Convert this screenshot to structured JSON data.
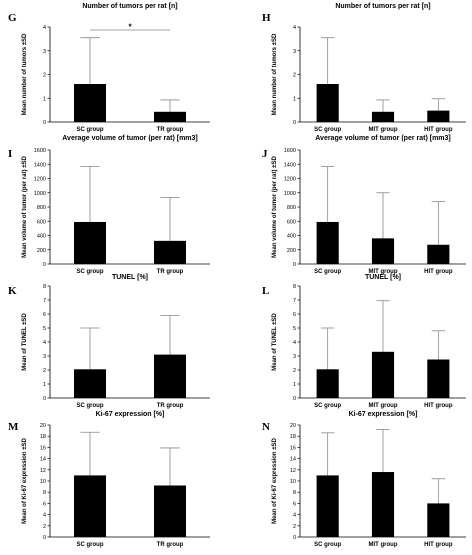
{
  "chart_data": [
    {
      "panel": "G",
      "type": "bar",
      "title": "Number of tumors per rat [n]",
      "ylabel": "Mean number of tumors ±SD",
      "categories": [
        "SC group",
        "TR group"
      ],
      "values": [
        1.6,
        0.43
      ],
      "errors": [
        1.95,
        0.5
      ],
      "ylim": [
        0,
        4
      ],
      "yticks": [
        "0",
        "1",
        "2",
        "3",
        "4"
      ],
      "significance": {
        "label": "*",
        "between": [
          0,
          1
        ]
      }
    },
    {
      "panel": "H",
      "type": "bar",
      "title": "Number of tumors per rat [n]",
      "ylabel": "Mean number of tumors ±SD",
      "categories": [
        "SC group",
        "MIT group",
        "HIT group"
      ],
      "values": [
        1.6,
        0.43,
        0.48
      ],
      "errors": [
        1.95,
        0.5,
        0.5
      ],
      "ylim": [
        0,
        4
      ],
      "yticks": [
        "0",
        "1",
        "2",
        "3",
        "4"
      ]
    },
    {
      "panel": "I",
      "type": "bar",
      "title": "Average volume of tumor (per rat) [mm3]",
      "ylabel": "Mean volume of tumor (per rat) ±SD",
      "categories": [
        "SC group",
        "TR group"
      ],
      "values": [
        590,
        325
      ],
      "errors": [
        780,
        610
      ],
      "ylim": [
        0,
        1600
      ],
      "yticks": [
        "0",
        "200",
        "400",
        "600",
        "800",
        "1000",
        "1200",
        "1400",
        "1600"
      ]
    },
    {
      "panel": "J",
      "type": "bar",
      "title": "Average volume of tumor (per rat) [mm3]",
      "ylabel": "Mean volume of tumor (per rat) ±SD",
      "categories": [
        "SC group",
        "MIT group",
        "HIT group"
      ],
      "values": [
        590,
        360,
        270
      ],
      "errors": [
        780,
        640,
        605
      ],
      "ylim": [
        0,
        1600
      ],
      "yticks": [
        "0",
        "200",
        "400",
        "600",
        "800",
        "1000",
        "1200",
        "1400",
        "1600"
      ]
    },
    {
      "panel": "K",
      "type": "bar",
      "title": "TUNEL [%]",
      "ylabel": "Mean of TUNEL ±SD",
      "categories": [
        "SC group",
        "TR group"
      ],
      "values": [
        2.05,
        3.1
      ],
      "errors": [
        2.95,
        2.8
      ],
      "ylim": [
        0,
        8
      ],
      "yticks": [
        "0",
        "1",
        "2",
        "3",
        "4",
        "5",
        "6",
        "7",
        "8"
      ]
    },
    {
      "panel": "L",
      "type": "bar",
      "title": "TUNEL [%]",
      "ylabel": "Mean of TUNEL ±SD",
      "categories": [
        "SC group",
        "MIT group",
        "HIT group"
      ],
      "values": [
        2.05,
        3.3,
        2.75
      ],
      "errors": [
        2.95,
        3.65,
        2.05
      ],
      "ylim": [
        0,
        8
      ],
      "yticks": [
        "0",
        "1",
        "2",
        "3",
        "4",
        "5",
        "6",
        "7",
        "8"
      ]
    },
    {
      "panel": "M",
      "type": "bar",
      "title": "Ki-67 expression [%]",
      "ylabel": "Mean of Ki-67 expression ±SD",
      "categories": [
        "SC group",
        "TR group"
      ],
      "values": [
        11.0,
        9.2
      ],
      "errors": [
        7.7,
        6.7
      ],
      "ylim": [
        0,
        20
      ],
      "yticks": [
        "0",
        "2",
        "4",
        "6",
        "8",
        "10",
        "12",
        "14",
        "16",
        "18",
        "20"
      ]
    },
    {
      "panel": "N",
      "type": "bar",
      "title": "Ki-67 expression [%]",
      "ylabel": "Mean of Ki-67 expression ±SD",
      "categories": [
        "SC group",
        "MIT group",
        "HIT group"
      ],
      "values": [
        11.0,
        11.6,
        6.0
      ],
      "errors": [
        7.6,
        7.6,
        4.4
      ],
      "ylim": [
        0,
        20
      ],
      "yticks": [
        "0",
        "2",
        "4",
        "6",
        "8",
        "10",
        "12",
        "14",
        "16",
        "18",
        "20"
      ]
    }
  ],
  "colors": {
    "bar": "#000000",
    "axis": "#000000",
    "error": "#888888"
  }
}
